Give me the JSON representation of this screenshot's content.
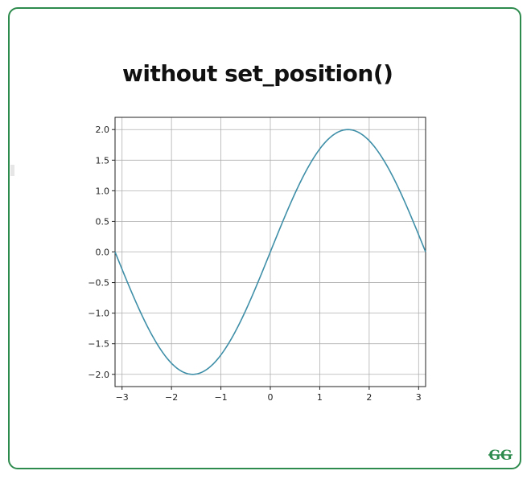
{
  "title": "without set_position()",
  "logo_text": "GG",
  "colors": {
    "border": "#2e8b4e",
    "line": "#3f8fa8",
    "grid": "#b0b0b0",
    "logo": "#2e8b4e"
  },
  "chart_data": {
    "type": "line",
    "function": "2*sin(x)",
    "x_range": [
      -3.14159,
      3.14159
    ],
    "xlim": [
      -3.14159,
      3.14159
    ],
    "ylim": [
      -2.2,
      2.2
    ],
    "xticks": [
      -3,
      -2,
      -1,
      0,
      1,
      2,
      3
    ],
    "xtick_labels": [
      "−3",
      "−2",
      "−1",
      "0",
      "1",
      "2",
      "3"
    ],
    "yticks": [
      -2.0,
      -1.5,
      -1.0,
      -0.5,
      0.0,
      0.5,
      1.0,
      1.5,
      2.0
    ],
    "ytick_labels": [
      "−2.0",
      "−1.5",
      "−1.0",
      "−0.5",
      "0.0",
      "0.5",
      "1.0",
      "1.5",
      "2.0"
    ],
    "x": [
      -3.1416,
      -2.618,
      -2.0944,
      -1.5708,
      -1.0472,
      -0.5236,
      0,
      0.5236,
      1.0472,
      1.5708,
      2.0944,
      2.618,
      3.1416
    ],
    "y": [
      0,
      -1.0,
      -1.732,
      -2.0,
      -1.732,
      -1.0,
      0,
      1.0,
      1.732,
      2.0,
      1.732,
      1.0,
      0
    ],
    "grid": true,
    "title": "",
    "xlabel": "",
    "ylabel": ""
  }
}
